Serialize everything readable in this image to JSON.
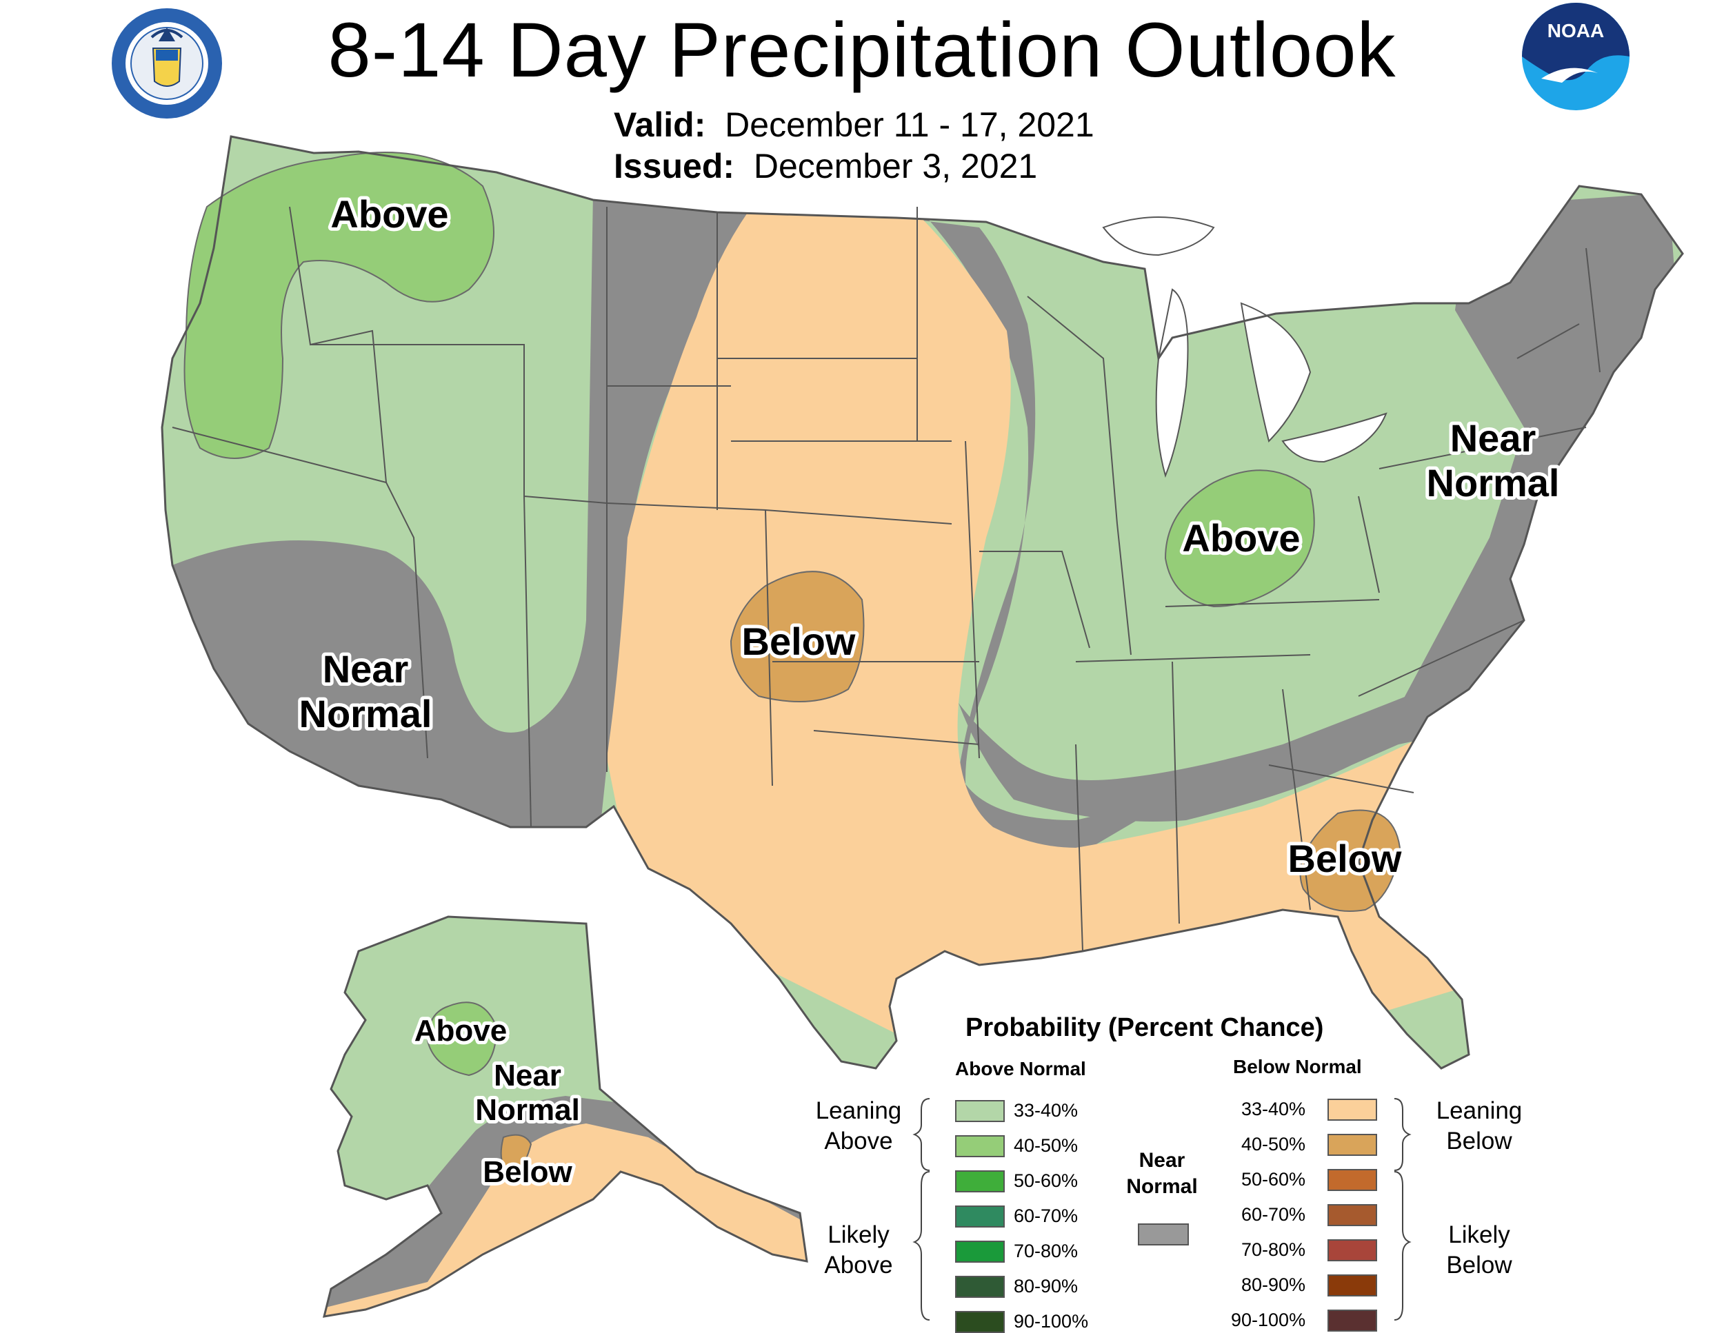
{
  "header": {
    "title": "8-14 Day Precipitation Outlook",
    "valid_label": "Valid:",
    "valid_value": "December 11 - 17, 2021",
    "issued_label": "Issued:",
    "issued_value": "December 3, 2021"
  },
  "logos": {
    "left": {
      "icon": "department-of-commerce-seal",
      "ring_text": "DEPARTMENT OF COMMERCE · UNITED STATES OF AMERICA"
    },
    "right": {
      "icon": "noaa-logo",
      "text": "NOAA"
    }
  },
  "map": {
    "colors": {
      "leaning_above": "#b3d6a8",
      "above_40_50": "#95cd78",
      "near_normal": "#8c8c8c",
      "leaning_below": "#fbd09a",
      "below_40_50": "#d9a45a",
      "water": "#ffffff",
      "border": "#555555"
    },
    "labels": {
      "pacific_nw": "Above",
      "southwest_line1": "Near",
      "southwest_line2": "Normal",
      "plains": "Below",
      "ohio_valley": "Above",
      "northeast_line1": "Near",
      "northeast_line2": "Normal",
      "southeast": "Below",
      "alaska_above": "Above",
      "alaska_near_line1": "Near",
      "alaska_near_line2": "Normal",
      "alaska_below": "Below"
    }
  },
  "legend": {
    "title": "Probability (Percent Chance)",
    "above_header": "Above Normal",
    "below_header": "Below Normal",
    "near_label_line1": "Near",
    "near_label_line2": "Normal",
    "near_color": "#999999",
    "leaning_above_line1": "Leaning",
    "leaning_above_line2": "Above",
    "likely_above_line1": "Likely",
    "likely_above_line2": "Above",
    "leaning_below_line1": "Leaning",
    "leaning_below_line2": "Below",
    "likely_below_line1": "Likely",
    "likely_below_line2": "Below",
    "above": [
      {
        "label": "33-40%",
        "color": "#b3d6a8"
      },
      {
        "label": "40-50%",
        "color": "#95cd78"
      },
      {
        "label": "50-60%",
        "color": "#3fae3a"
      },
      {
        "label": "60-70%",
        "color": "#2f8a60"
      },
      {
        "label": "70-80%",
        "color": "#1a9a3a"
      },
      {
        "label": "80-90%",
        "color": "#2f5a35"
      },
      {
        "label": "90-100%",
        "color": "#2b4c1f"
      }
    ],
    "below": [
      {
        "label": "33-40%",
        "color": "#fbd09a"
      },
      {
        "label": "40-50%",
        "color": "#d9a45a"
      },
      {
        "label": "50-60%",
        "color": "#c26a2c"
      },
      {
        "label": "60-70%",
        "color": "#a65a2e"
      },
      {
        "label": "70-80%",
        "color": "#a8453a"
      },
      {
        "label": "80-90%",
        "color": "#8a3a0a"
      },
      {
        "label": "90-100%",
        "color": "#5a3030"
      }
    ]
  }
}
